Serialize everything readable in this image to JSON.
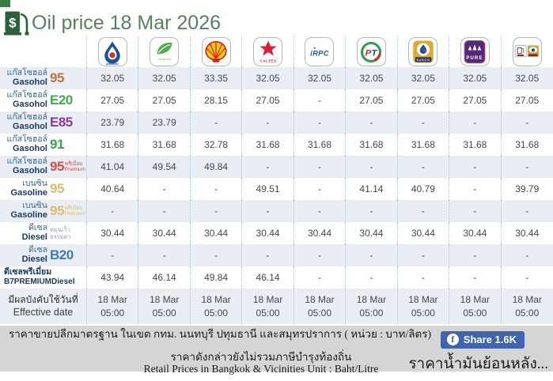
{
  "header": {
    "title": "Oil price 18 Mar 2026"
  },
  "brands": [
    {
      "id": "ptt",
      "label": "pttstation"
    },
    {
      "id": "bangchak",
      "label": "bangchak"
    },
    {
      "id": "shell",
      "label": "Shell"
    },
    {
      "id": "caltex",
      "label": "CALTEX"
    },
    {
      "id": "irpc",
      "label": "iRPC"
    },
    {
      "id": "pt",
      "label": "PT"
    },
    {
      "id": "susco",
      "label": "SUSCO"
    },
    {
      "id": "pure",
      "label": "PURE"
    },
    {
      "id": "susco_dealers",
      "label": "SUSCO Dealers"
    }
  ],
  "table": {
    "rows": [
      {
        "name_th": "แก๊สโซฮอล์",
        "name_en": "Gasohol",
        "grade": "95",
        "grade_color": "#c2703d",
        "values": [
          "32.05",
          "32.05",
          "33.35",
          "32.05",
          "32.05",
          "32.05",
          "32.05",
          "32.05",
          "32.05"
        ]
      },
      {
        "name_th": "แก๊สโซฮอล์",
        "name_en": "Gasohol",
        "grade": "E20",
        "grade_color": "#3daf49",
        "values": [
          "27.05",
          "27.05",
          "28.15",
          "27.05",
          "-",
          "27.05",
          "27.05",
          "27.05",
          "27.05"
        ]
      },
      {
        "name_th": "แก๊สโซฮอล์",
        "name_en": "Gasohol",
        "grade": "E85",
        "grade_color": "#8d3a94",
        "values": [
          "23.79",
          "23.79",
          "-",
          "-",
          "-",
          "-",
          "-",
          "-",
          "-"
        ]
      },
      {
        "name_th": "แก๊สโซฮอล์",
        "name_en": "Gasohol",
        "grade": "91",
        "grade_color": "#3da049",
        "values": [
          "31.68",
          "31.68",
          "32.78",
          "31.68",
          "31.68",
          "31.68",
          "31.68",
          "31.68",
          "31.68"
        ]
      },
      {
        "name_th": "แก๊สโซฮอล์",
        "name_en": "Gasohol",
        "grade": "95",
        "grade_color": "#e0483e",
        "premium_th": "พรีเมี่ยม",
        "premium_en": "Premium",
        "values": [
          "41.04",
          "49.54",
          "49.84",
          "-",
          "-",
          "-",
          "-",
          "-",
          "-"
        ]
      },
      {
        "name_th": "เบนซิน",
        "name_en": "Gasoline",
        "grade": "95",
        "grade_color": "#dcbd62",
        "values": [
          "40.64",
          "-",
          "-",
          "49.51",
          "-",
          "41.14",
          "40.79",
          "-",
          "39.79"
        ]
      },
      {
        "name_th": "เบนซิน",
        "name_en": "Gasoline",
        "grade": "95",
        "grade_color": "#dcbd62",
        "premium_th": "พรีเมี่ยม",
        "premium_en": "Premium",
        "values": [
          "-",
          "-",
          "-",
          "-",
          "-",
          "-",
          "-",
          "-",
          "-"
        ]
      },
      {
        "name_th": "ดีเซล",
        "name_en": "Diesel",
        "grade_lines": [
          "หมุนเร็ว",
          "ธรรมดา"
        ],
        "values": [
          "30.44",
          "30.44",
          "30.44",
          "30.44",
          "30.44",
          "30.44",
          "30.44",
          "30.44",
          "30.44"
        ]
      },
      {
        "name_th": "ดีเซล",
        "name_en": "Diesel",
        "grade": "B20",
        "grade_color": "#4179b5",
        "values": [
          "-",
          "-",
          "-",
          "-",
          "-",
          "-",
          "-",
          "-",
          "-"
        ]
      },
      {
        "label_lines": [
          "ดีเซลพรีเมี่ยม",
          "B7PREMIUMDiesel"
        ],
        "values": [
          "43.94",
          "46.14",
          "49.84",
          "46.14",
          "-",
          "-",
          "-",
          "-",
          "-"
        ]
      }
    ],
    "effective": {
      "label_th": "มีผลบังคับใช้วันที่",
      "label_en": "Effective date",
      "date": "18 Mar",
      "time": "05:00"
    }
  },
  "footer": {
    "note1": "ราคาขายปลีกมาตรฐาน ในเขต กทม. นนทบุรี ปทุมธานี และสมุทรปราการ ( หน่วย : บาท/ลิตร)",
    "note2": "ราคาดังกล่าวยังไม่รวมภาษีบำรุงท้องถิ่น",
    "note3": "Retail Prices in Bangkok & Vicinities Unit : Baht/Litre",
    "share_label": "Share 1.6K",
    "history_link": "ราคาน้ำมันย้อนหลัง..."
  },
  "colors": {
    "accent_green": "#55825d",
    "row_alt": "#e9eef5",
    "facebook_blue": "#4064ad"
  }
}
